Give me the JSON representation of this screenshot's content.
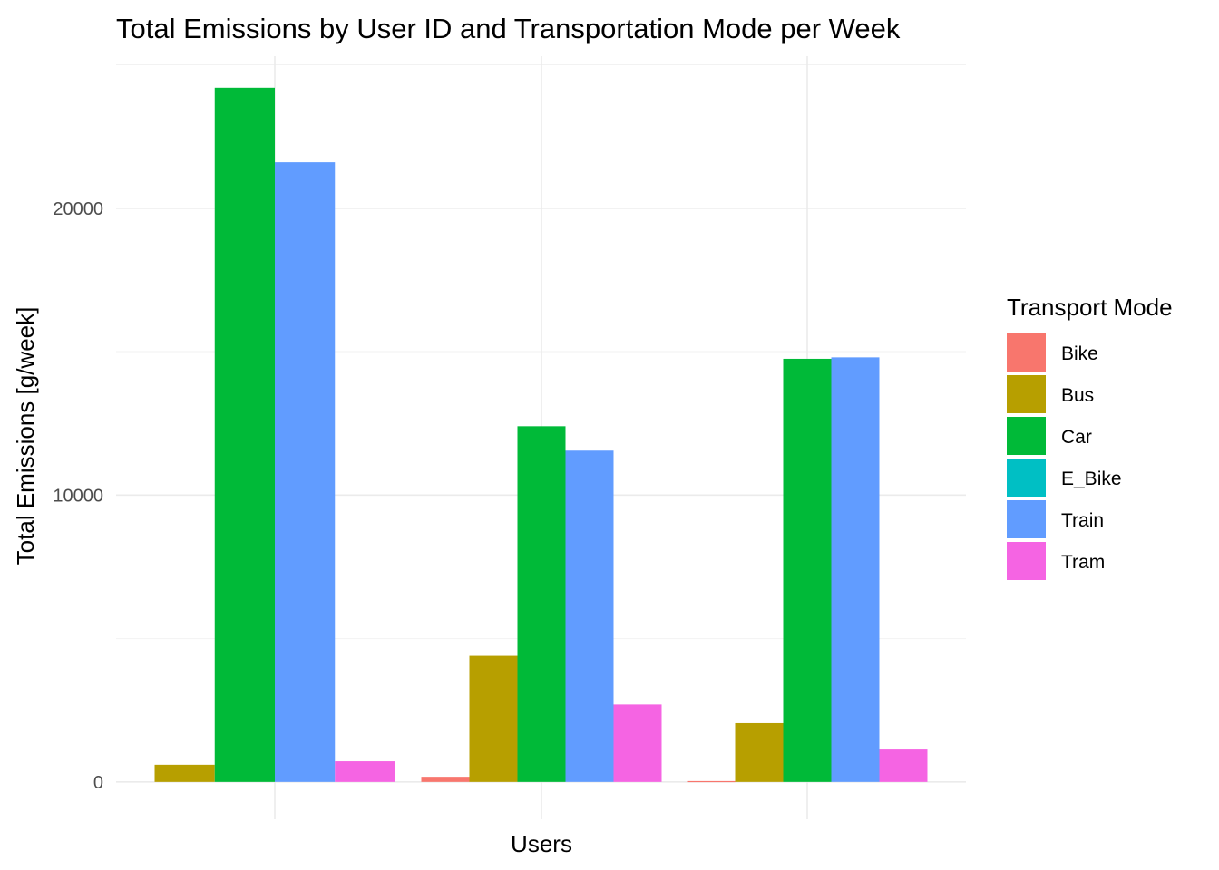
{
  "chart_data": {
    "type": "bar",
    "title": "Total Emissions by User ID and Transportation Mode per Week",
    "xlabel": "Users",
    "ylabel": "Total Emissions [g/week]",
    "ylim": [
      -1300,
      25300
    ],
    "y_major_ticks": [
      0,
      10000,
      20000
    ],
    "y_tick_labels": [
      "0",
      "10000",
      "20000"
    ],
    "y_minor_ticks": [
      5000,
      15000,
      25000
    ],
    "grid": true,
    "groups": 3,
    "legend": {
      "title": "Transport Mode",
      "placement": "right"
    },
    "series": [
      {
        "name": "Bike",
        "color": "#f8766d",
        "values": [
          null,
          180,
          30
        ]
      },
      {
        "name": "Bus",
        "color": "#b79f00",
        "values": [
          600,
          4400,
          2050
        ]
      },
      {
        "name": "Car",
        "color": "#00ba38",
        "values": [
          24200,
          12400,
          14750
        ]
      },
      {
        "name": "E_Bike",
        "color": "#00bfc4",
        "values": [
          null,
          null,
          null
        ]
      },
      {
        "name": "Train",
        "color": "#619cff",
        "values": [
          21600,
          11550,
          14800
        ]
      },
      {
        "name": "Tram",
        "color": "#f564e3",
        "values": [
          720,
          2700,
          1130
        ]
      }
    ]
  }
}
